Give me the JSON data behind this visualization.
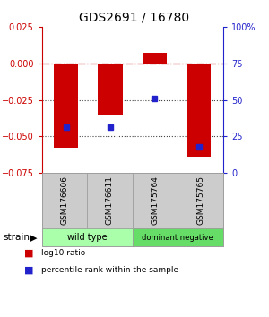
{
  "title": "GDS2691 / 16780",
  "samples": [
    "GSM176606",
    "GSM176611",
    "GSM175764",
    "GSM175765"
  ],
  "log10_ratios": [
    -0.058,
    -0.035,
    0.007,
    -0.064
  ],
  "percentile_ranks": [
    31,
    31,
    51,
    18
  ],
  "bar_color": "#cc0000",
  "dot_color": "#2222cc",
  "ylim_left": [
    -0.075,
    0.025
  ],
  "ylim_right": [
    0,
    100
  ],
  "yticks_left": [
    0.025,
    0,
    -0.025,
    -0.05,
    -0.075
  ],
  "yticks_right": [
    100,
    75,
    50,
    25,
    0
  ],
  "groups": [
    {
      "label": "wild type",
      "samples": [
        0,
        1
      ],
      "color": "#aaffaa"
    },
    {
      "label": "dominant negative",
      "samples": [
        2,
        3
      ],
      "color": "#66dd66"
    }
  ],
  "strain_label": "strain",
  "legend_items": [
    {
      "label": "log10 ratio",
      "color": "#cc0000"
    },
    {
      "label": "percentile rank within the sample",
      "color": "#2222cc"
    }
  ],
  "hline_zero_color": "#cc0000",
  "hline_dot_color": "#444444",
  "bar_width": 0.55,
  "sample_box_color": "#cccccc",
  "sample_box_edge": "#999999"
}
